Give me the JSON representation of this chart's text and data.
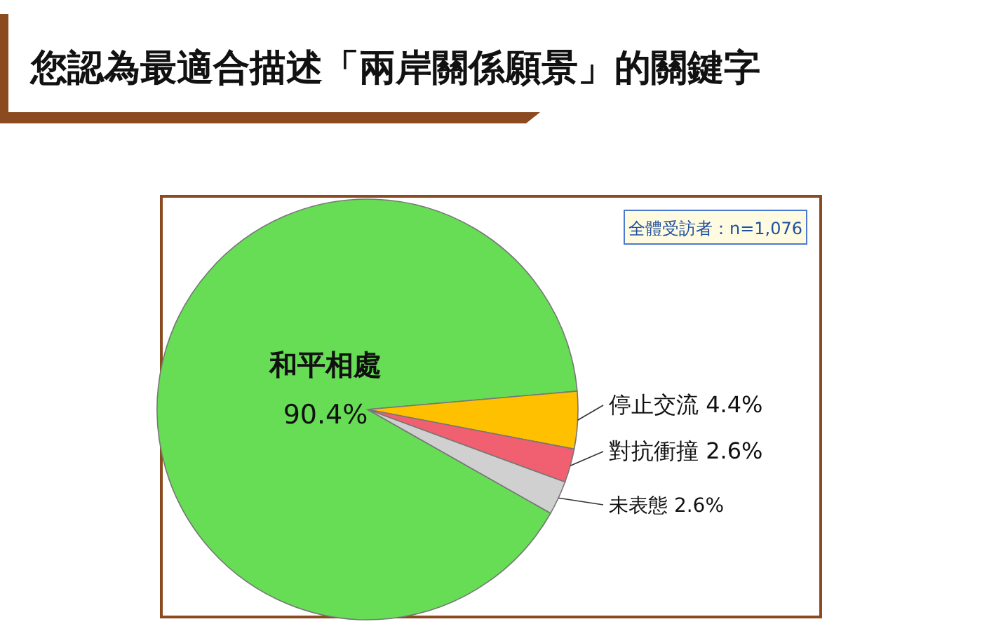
{
  "chart_data": {
    "type": "pie",
    "title": "您認為最適合描述「兩岸關係願景」的關鍵字",
    "categories": [
      "和平相處",
      "停止交流",
      "對抗衝撞",
      "未表態"
    ],
    "values": [
      90.4,
      4.4,
      2.6,
      2.6
    ],
    "colors": [
      "#66dd55",
      "#ffc000",
      "#f06070",
      "#d0d0d0"
    ],
    "value_labels": [
      "90.4%",
      "4.4%",
      "2.6%",
      "2.6%"
    ],
    "annotations": [
      "全體受訪者：n=1,076"
    ]
  }
}
